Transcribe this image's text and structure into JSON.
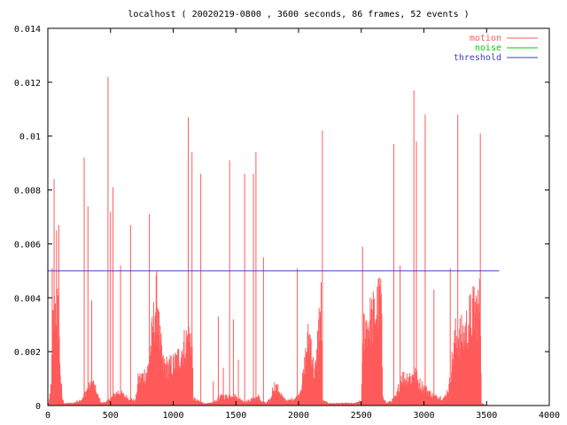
{
  "chart_data": {
    "type": "area",
    "title": "localhost ( 20020219-0800 , 3600 seconds, 86 frames, 52 events )",
    "xlabel": "",
    "ylabel": "",
    "xlim": [
      0,
      4000
    ],
    "ylim": [
      0,
      0.014
    ],
    "x_ticks": [
      0,
      500,
      1000,
      1500,
      2000,
      2500,
      3000,
      3500,
      4000
    ],
    "x_tick_labels": [
      "0",
      "500",
      "1000",
      "1500",
      "2000",
      "2500",
      "3000",
      "3500",
      "4000"
    ],
    "y_ticks": [
      0,
      0.002,
      0.004,
      0.006,
      0.008,
      0.01,
      0.012,
      0.014
    ],
    "y_tick_labels": [
      "0",
      "0.002",
      "0.004",
      "0.006",
      "0.008",
      "0.01",
      "0.012",
      "0.014"
    ],
    "grid": false,
    "legend_position": "top-right",
    "colors": {
      "motion": "#ff5a5a",
      "noise": "#00cc00",
      "threshold": "#4040c0"
    },
    "legend": [
      "motion",
      "noise",
      "threshold"
    ],
    "series": [
      {
        "name": "motion",
        "style": "impulses",
        "envelope": [
          [
            0,
            0
          ],
          [
            10,
            0.0002
          ],
          [
            20,
            0.0005
          ],
          [
            30,
            0.0014
          ],
          [
            40,
            0.0035
          ],
          [
            55,
            0.0043
          ],
          [
            70,
            0.0045
          ],
          [
            85,
            0.0038
          ],
          [
            95,
            0.0022
          ],
          [
            110,
            0.0004
          ],
          [
            130,
            0.0001
          ],
          [
            200,
            0.0001
          ],
          [
            240,
            0.0002
          ],
          [
            280,
            0.0003
          ],
          [
            300,
            0.0006
          ],
          [
            330,
            0.0008
          ],
          [
            360,
            0.001
          ],
          [
            400,
            0.0004
          ],
          [
            430,
            0.0001
          ],
          [
            480,
            0.0002
          ],
          [
            520,
            0.0004
          ],
          [
            560,
            0.0006
          ],
          [
            590,
            0.0005
          ],
          [
            620,
            0.0004
          ],
          [
            660,
            0.0003
          ],
          [
            700,
            0.0002
          ],
          [
            720,
            0.0011
          ],
          [
            760,
            0.0013
          ],
          [
            800,
            0.0016
          ],
          [
            830,
            0.003
          ],
          [
            860,
            0.0045
          ],
          [
            880,
            0.0047
          ],
          [
            890,
            0.003
          ],
          [
            920,
            0.0018
          ],
          [
            960,
            0.0017
          ],
          [
            1000,
            0.0018
          ],
          [
            1040,
            0.0021
          ],
          [
            1080,
            0.0026
          ],
          [
            1110,
            0.0029
          ],
          [
            1140,
            0.003
          ],
          [
            1150,
            0.0031
          ],
          [
            1160,
            0.0003
          ],
          [
            1200,
            0.0002
          ],
          [
            1250,
            0.0001
          ],
          [
            1300,
            0.0001
          ],
          [
            1340,
            0.0002
          ],
          [
            1380,
            0.0004
          ],
          [
            1430,
            0.0004
          ],
          [
            1470,
            0.0005
          ],
          [
            1520,
            0.0003
          ],
          [
            1560,
            0.0002
          ],
          [
            1600,
            0.0002
          ],
          [
            1640,
            0.0003
          ],
          [
            1680,
            0.0004
          ],
          [
            1700,
            0.0002
          ],
          [
            1740,
            0.0001
          ],
          [
            1780,
            0.0003
          ],
          [
            1800,
            0.0009
          ],
          [
            1840,
            0.0007
          ],
          [
            1880,
            0.0003
          ],
          [
            1920,
            0.0002
          ],
          [
            1960,
            0.0003
          ],
          [
            2000,
            0.0004
          ],
          [
            2040,
            0.0013
          ],
          [
            2060,
            0.0024
          ],
          [
            2080,
            0.003
          ],
          [
            2100,
            0.0029
          ],
          [
            2120,
            0.0015
          ],
          [
            2140,
            0.0017
          ],
          [
            2160,
            0.0035
          ],
          [
            2180,
            0.0044
          ],
          [
            2190,
            0.0002
          ],
          [
            2250,
            0.0001
          ],
          [
            2350,
            0.0001
          ],
          [
            2450,
            0.0001
          ],
          [
            2500,
            0.0002
          ],
          [
            2520,
            0.0035
          ],
          [
            2560,
            0.0037
          ],
          [
            2600,
            0.004
          ],
          [
            2640,
            0.0045
          ],
          [
            2660,
            0.0049
          ],
          [
            2670,
            0.0005
          ],
          [
            2700,
            0.0001
          ],
          [
            2740,
            0.0002
          ],
          [
            2780,
            0.0004
          ],
          [
            2820,
            0.0013
          ],
          [
            2850,
            0.0012
          ],
          [
            2870,
            0.0013
          ],
          [
            2890,
            0.0013
          ],
          [
            2900,
            0.0012
          ],
          [
            2920,
            0.0015
          ],
          [
            2960,
            0.001
          ],
          [
            3000,
            0.0008
          ],
          [
            3040,
            0.0006
          ],
          [
            3080,
            0.0004
          ],
          [
            3120,
            0.0004
          ],
          [
            3160,
            0.0003
          ],
          [
            3200,
            0.0008
          ],
          [
            3230,
            0.0022
          ],
          [
            3250,
            0.003
          ],
          [
            3280,
            0.0031
          ],
          [
            3320,
            0.0031
          ],
          [
            3360,
            0.0038
          ],
          [
            3400,
            0.0042
          ],
          [
            3430,
            0.0043
          ],
          [
            3450,
            0.0045
          ],
          [
            3460,
            0.0001
          ],
          [
            3500,
            0
          ],
          [
            3600,
            0
          ]
        ],
        "spikes": [
          [
            35,
            0.0051
          ],
          [
            50,
            0.0084
          ],
          [
            70,
            0.0065
          ],
          [
            88,
            0.0067
          ],
          [
            110,
            0.0008
          ],
          [
            290,
            0.0092
          ],
          [
            320,
            0.0074
          ],
          [
            350,
            0.0039
          ],
          [
            480,
            0.0122
          ],
          [
            500,
            0.0072
          ],
          [
            520,
            0.0081
          ],
          [
            580,
            0.0052
          ],
          [
            660,
            0.0067
          ],
          [
            810,
            0.0071
          ],
          [
            1120,
            0.0107
          ],
          [
            1150,
            0.0094
          ],
          [
            1220,
            0.0086
          ],
          [
            1320,
            0.0009
          ],
          [
            1360,
            0.0033
          ],
          [
            1400,
            0.0014
          ],
          [
            1450,
            0.0091
          ],
          [
            1480,
            0.0032
          ],
          [
            1520,
            0.0017
          ],
          [
            1570,
            0.0086
          ],
          [
            1640,
            0.0086
          ],
          [
            1660,
            0.0094
          ],
          [
            1720,
            0.0055
          ],
          [
            1990,
            0.0051
          ],
          [
            2190,
            0.0102
          ],
          [
            2510,
            0.0059
          ],
          [
            2760,
            0.0097
          ],
          [
            2810,
            0.0052
          ],
          [
            2920,
            0.0117
          ],
          [
            2940,
            0.0098
          ],
          [
            3010,
            0.0108
          ],
          [
            3080,
            0.0043
          ],
          [
            3210,
            0.0051
          ],
          [
            3270,
            0.0108
          ],
          [
            3400,
            0.0044
          ],
          [
            3450,
            0.0101
          ]
        ]
      },
      {
        "name": "noise",
        "values": []
      },
      {
        "name": "threshold",
        "values": [
          [
            0,
            0.005
          ],
          [
            3600,
            0.005
          ]
        ]
      }
    ]
  }
}
